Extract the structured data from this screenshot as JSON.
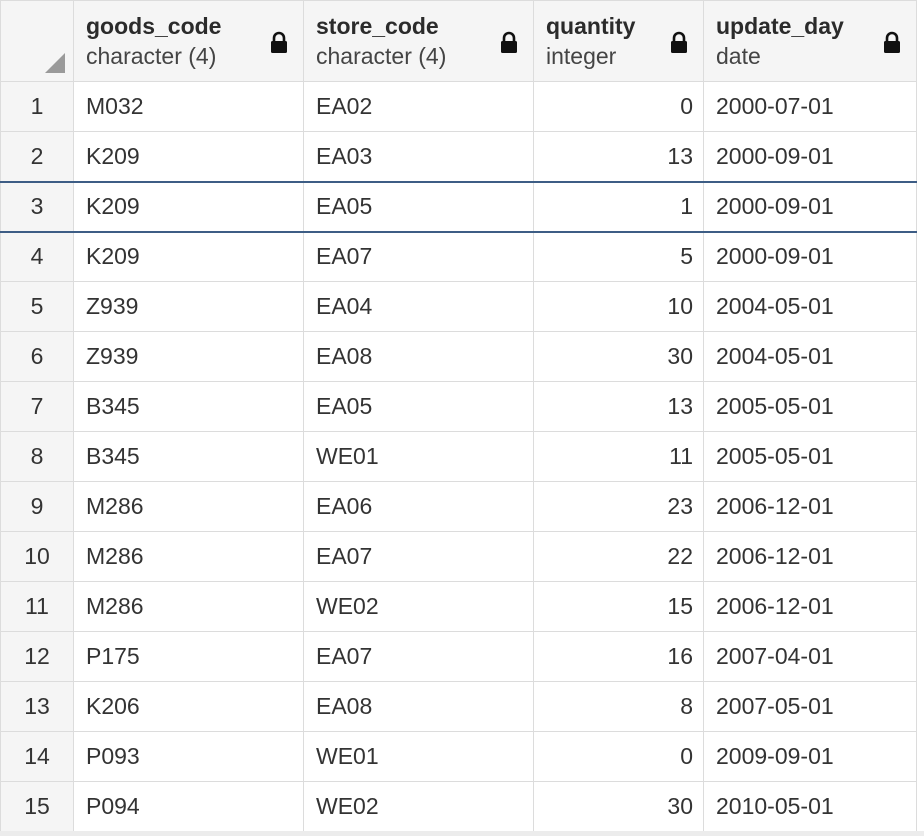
{
  "columns": [
    {
      "name": "goods_code",
      "type": "character (4)"
    },
    {
      "name": "store_code",
      "type": "character (4)"
    },
    {
      "name": "quantity",
      "type": "integer"
    },
    {
      "name": "update_day",
      "type": "date"
    }
  ],
  "rows": [
    {
      "num": "1",
      "goods_code": "M032",
      "store_code": "EA02",
      "quantity": "0",
      "update_day": "2000-07-01"
    },
    {
      "num": "2",
      "goods_code": "K209",
      "store_code": "EA03",
      "quantity": "13",
      "update_day": "2000-09-01"
    },
    {
      "num": "3",
      "goods_code": "K209",
      "store_code": "EA05",
      "quantity": "1",
      "update_day": "2000-09-01"
    },
    {
      "num": "4",
      "goods_code": "K209",
      "store_code": "EA07",
      "quantity": "5",
      "update_day": "2000-09-01"
    },
    {
      "num": "5",
      "goods_code": "Z939",
      "store_code": "EA04",
      "quantity": "10",
      "update_day": "2004-05-01"
    },
    {
      "num": "6",
      "goods_code": "Z939",
      "store_code": "EA08",
      "quantity": "30",
      "update_day": "2004-05-01"
    },
    {
      "num": "7",
      "goods_code": "B345",
      "store_code": "EA05",
      "quantity": "13",
      "update_day": "2005-05-01"
    },
    {
      "num": "8",
      "goods_code": "B345",
      "store_code": "WE01",
      "quantity": "11",
      "update_day": "2005-05-01"
    },
    {
      "num": "9",
      "goods_code": "M286",
      "store_code": "EA06",
      "quantity": "23",
      "update_day": "2006-12-01"
    },
    {
      "num": "10",
      "goods_code": "M286",
      "store_code": "EA07",
      "quantity": "22",
      "update_day": "2006-12-01"
    },
    {
      "num": "11",
      "goods_code": "M286",
      "store_code": "WE02",
      "quantity": "15",
      "update_day": "2006-12-01"
    },
    {
      "num": "12",
      "goods_code": "P175",
      "store_code": "EA07",
      "quantity": "16",
      "update_day": "2007-04-01"
    },
    {
      "num": "13",
      "goods_code": "K206",
      "store_code": "EA08",
      "quantity": "8",
      "update_day": "2007-05-01"
    },
    {
      "num": "14",
      "goods_code": "P093",
      "store_code": "WE01",
      "quantity": "0",
      "update_day": "2009-09-01"
    },
    {
      "num": "15",
      "goods_code": "P094",
      "store_code": "WE02",
      "quantity": "30",
      "update_day": "2010-05-01"
    }
  ],
  "selected_row": 2,
  "icons": {
    "header_lock": "lock-icon",
    "select_all": "select-all-corner-icon"
  },
  "colors": {
    "header_bg": "#f5f5f5",
    "grid_line": "#dcdcdc",
    "selection_border": "#3d5d85"
  }
}
